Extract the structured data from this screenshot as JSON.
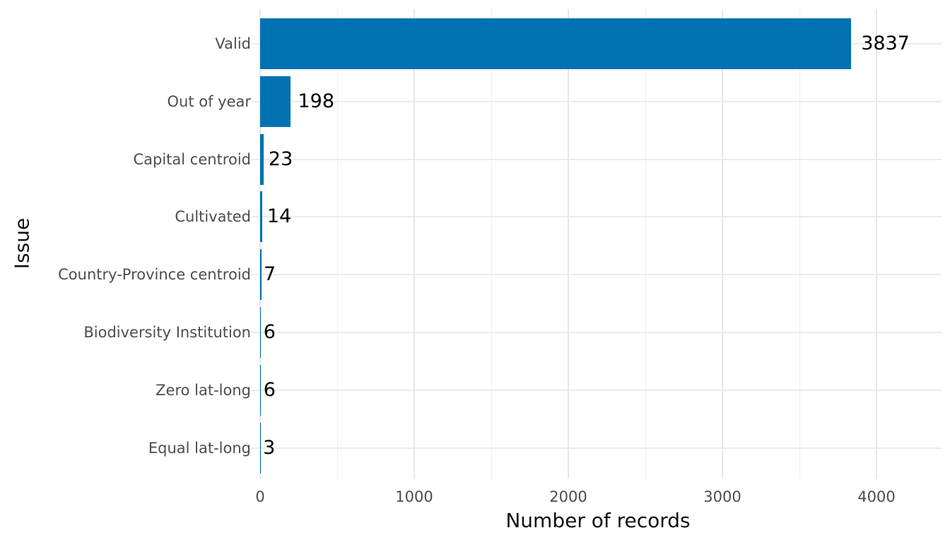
{
  "chart_data": {
    "type": "bar",
    "orientation": "horizontal",
    "title": "",
    "xlabel": "Number of records",
    "ylabel": "Issue",
    "categories": [
      "Valid",
      "Out of year",
      "Capital centroid",
      "Cultivated",
      "Country-Province centroid",
      "Biodiversity Institution",
      "Zero lat-long",
      "Equal lat-long"
    ],
    "values": [
      3837,
      198,
      23,
      14,
      7,
      6,
      6,
      3
    ],
    "value_labels": [
      "3837",
      "198",
      "23",
      "14",
      "7",
      "6",
      "6",
      "3"
    ],
    "x_major_ticks": [
      0,
      1000,
      2000,
      3000,
      4000
    ],
    "x_tick_labels": [
      "0",
      "1000",
      "2000",
      "3000",
      "4000"
    ],
    "x_minor_ticks": [
      500,
      1500,
      2500,
      3500
    ],
    "xlim": [
      0,
      4470
    ],
    "bar_color": "#0072B2",
    "grid": true,
    "gridline_major_color": "#E7E7E7",
    "gridline_minor_color": "#EFEFEF",
    "axis_text_color": "#4D4D4D",
    "axis_title_color": "#111111",
    "value_label_color": "#000000",
    "background_color": "#FFFFFF",
    "legend": "none"
  }
}
